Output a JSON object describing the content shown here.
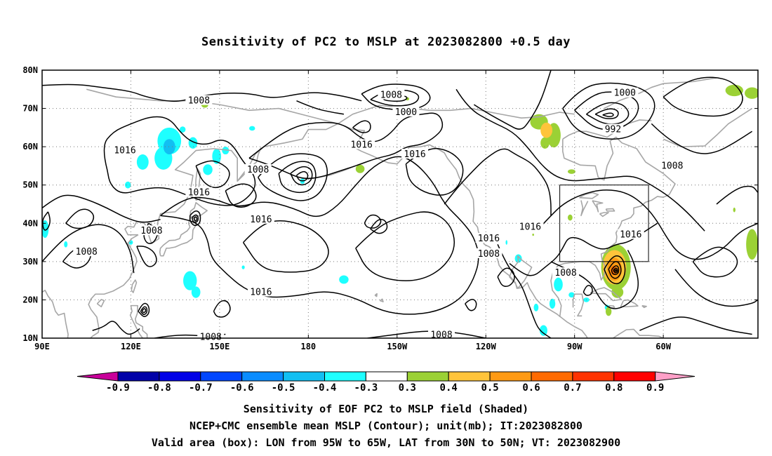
{
  "title": "Sensitivity of PC2 to MSLP at 2023082800 +0.5 day",
  "captions": [
    "Sensitivity of EOF PC2 to MSLP field (Shaded)",
    "NCEP+CMC ensemble mean MSLP (Contour); unit(mb); IT:2023082800",
    "Valid area (box): LON from 95W to 65W, LAT from 30N to 50N; VT: 2023082900"
  ],
  "map": {
    "lon_range": [
      90,
      332
    ],
    "lat_range": [
      10,
      80
    ],
    "lat_ticks": [
      {
        "lat": 80,
        "label": "80N"
      },
      {
        "lat": 70,
        "label": "70N"
      },
      {
        "lat": 60,
        "label": "60N"
      },
      {
        "lat": 50,
        "label": "50N"
      },
      {
        "lat": 40,
        "label": "40N"
      },
      {
        "lat": 30,
        "label": "30N"
      },
      {
        "lat": 20,
        "label": "20N"
      },
      {
        "lat": 10,
        "label": "10N"
      }
    ],
    "lon_ticks": [
      {
        "lon": 90,
        "label": "90E"
      },
      {
        "lon": 120,
        "label": "120E"
      },
      {
        "lon": 150,
        "label": "150E"
      },
      {
        "lon": 180,
        "label": "180"
      },
      {
        "lon": 210,
        "label": "150W"
      },
      {
        "lon": 240,
        "label": "120W"
      },
      {
        "lon": 270,
        "label": "90W"
      },
      {
        "lon": 300,
        "label": "60W"
      }
    ],
    "valid_box": {
      "lon": [
        265,
        295
      ],
      "lat": [
        30,
        50
      ]
    },
    "contour_labels": [
      {
        "text": "1008",
        "lon": 143,
        "lat": 72
      },
      {
        "text": "1008",
        "lon": 208,
        "lat": 73.5
      },
      {
        "text": "1000",
        "lon": 213,
        "lat": 69
      },
      {
        "text": "1000",
        "lon": 287,
        "lat": 74
      },
      {
        "text": "992",
        "lon": 283,
        "lat": 64.5
      },
      {
        "text": "1016",
        "lon": 118,
        "lat": 59
      },
      {
        "text": "1016",
        "lon": 143,
        "lat": 48
      },
      {
        "text": "1008",
        "lon": 163,
        "lat": 54
      },
      {
        "text": "1016",
        "lon": 198,
        "lat": 60.5
      },
      {
        "text": "1016",
        "lon": 216,
        "lat": 58
      },
      {
        "text": "1008",
        "lon": 303,
        "lat": 55
      },
      {
        "text": "1016",
        "lon": 164,
        "lat": 41
      },
      {
        "text": "1008",
        "lon": 127,
        "lat": 38
      },
      {
        "text": "1008",
        "lon": 105,
        "lat": 32.5
      },
      {
        "text": "1016",
        "lon": 255,
        "lat": 39
      },
      {
        "text": "1016",
        "lon": 241,
        "lat": 36
      },
      {
        "text": "1008",
        "lon": 241,
        "lat": 32
      },
      {
        "text": "1016",
        "lon": 289,
        "lat": 37
      },
      {
        "text": "1008",
        "lon": 267,
        "lat": 27
      },
      {
        "text": "1016",
        "lon": 164,
        "lat": 22
      },
      {
        "text": "1008",
        "lon": 147,
        "lat": 10.3
      },
      {
        "text": "1008",
        "lon": 225,
        "lat": 10.8
      }
    ]
  },
  "colorbar": {
    "labels": [
      "-0.9",
      "-0.8",
      "-0.7",
      "-0.6",
      "-0.5",
      "-0.4",
      "-0.3",
      "0.3",
      "0.4",
      "0.5",
      "0.6",
      "0.7",
      "0.8",
      "0.9"
    ],
    "colors": [
      "#0000a8",
      "#0000e6",
      "#0046ff",
      "#0a8cff",
      "#12bff2",
      "#1effff",
      "#ffffff",
      "#9bd135",
      "#ffc43b",
      "#ff9a14",
      "#ff6a00",
      "#ff3300",
      "#ff0000"
    ],
    "left_tip_color": "#c8009a",
    "right_tip_color": "#ffa0c8"
  }
}
